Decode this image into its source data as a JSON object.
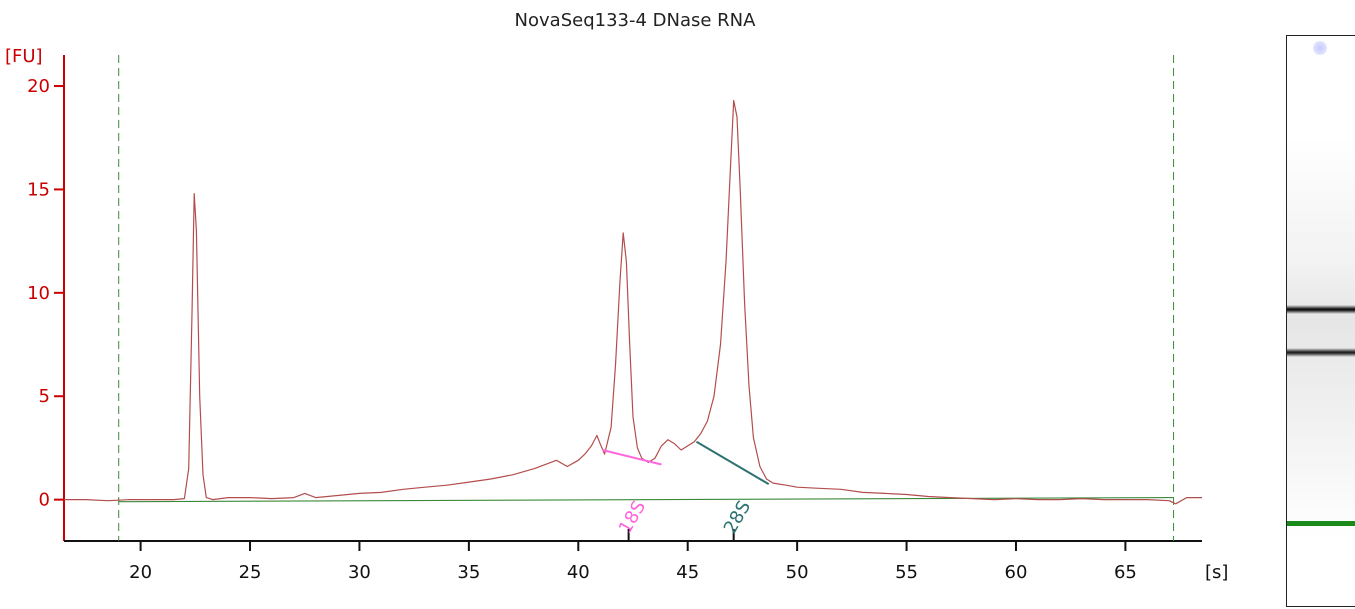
{
  "chart_data": {
    "type": "line",
    "title": "NovaSeq133-4 DNase RNA",
    "ylabel": "[FU]",
    "xlabel": "[s]",
    "xlim": [
      16.5,
      68.5
    ],
    "ylim": [
      -2,
      21.5
    ],
    "x_ticks": [
      20,
      25,
      30,
      35,
      40,
      45,
      50,
      55,
      60,
      65
    ],
    "y_ticks": [
      0,
      5,
      10,
      15,
      20
    ],
    "grid": false,
    "markers": [
      19.0,
      67.2
    ],
    "series": [
      {
        "color": "#b34d4d",
        "x": [
          16.5,
          17.5,
          18.5,
          19.5,
          20.5,
          21.5,
          22.0,
          22.2,
          22.35,
          22.45,
          22.55,
          22.7,
          22.85,
          23.0,
          23.3,
          24,
          25,
          26,
          27,
          27.5,
          28,
          29,
          30,
          31,
          32,
          33,
          34,
          35,
          36,
          37,
          38,
          39,
          39.5,
          40,
          40.3,
          40.6,
          40.85,
          41.0,
          41.2,
          41.5,
          41.7,
          41.9,
          42.05,
          42.2,
          42.35,
          42.5,
          42.7,
          42.9,
          43.2,
          43.5,
          43.8,
          44.1,
          44.4,
          44.7,
          45.0,
          45.3,
          45.6,
          45.9,
          46.2,
          46.5,
          46.75,
          46.95,
          47.1,
          47.25,
          47.4,
          47.6,
          47.8,
          48.0,
          48.3,
          48.6,
          48.9,
          49.5,
          50,
          51,
          52,
          53,
          54,
          55,
          56,
          57,
          58,
          59,
          60,
          61,
          62,
          63,
          64,
          65,
          66,
          67,
          67.3,
          67.8,
          68.5
        ],
        "y": [
          0.0,
          0.0,
          -0.05,
          0.0,
          0.0,
          0.0,
          0.05,
          1.5,
          9.0,
          14.8,
          13.0,
          5.0,
          1.2,
          0.1,
          0.0,
          0.1,
          0.1,
          0.05,
          0.1,
          0.3,
          0.1,
          0.2,
          0.3,
          0.35,
          0.5,
          0.6,
          0.7,
          0.85,
          1.0,
          1.2,
          1.5,
          1.9,
          1.6,
          1.9,
          2.2,
          2.6,
          3.1,
          2.7,
          2.2,
          3.5,
          6.5,
          10.5,
          12.9,
          11.5,
          7.5,
          4.0,
          2.5,
          2.0,
          1.8,
          2.0,
          2.6,
          2.9,
          2.7,
          2.4,
          2.6,
          2.8,
          3.2,
          3.8,
          5.0,
          7.5,
          11.5,
          16.0,
          19.3,
          18.5,
          15.0,
          9.5,
          5.5,
          3.0,
          1.6,
          1.0,
          0.8,
          0.7,
          0.6,
          0.55,
          0.5,
          0.35,
          0.3,
          0.25,
          0.15,
          0.1,
          0.05,
          0.0,
          0.05,
          0.0,
          0.0,
          0.05,
          0.0,
          0.0,
          0.0,
          -0.05,
          -0.2,
          0.1,
          0.1
        ]
      }
    ],
    "baseline": {
      "color": "#3a8a3a",
      "x": [
        19.0,
        67.2
      ],
      "y": [
        -0.1,
        0.1
      ]
    },
    "annotations": [
      {
        "label": "18S",
        "x": 42.3,
        "color": "#ff66dd",
        "line": {
          "x": [
            41.1,
            43.8
          ],
          "y": [
            2.4,
            1.7
          ]
        }
      },
      {
        "label": "28S",
        "x": 47.1,
        "color": "#2e7272",
        "line": {
          "x": [
            45.4,
            48.7
          ],
          "y": [
            2.8,
            0.75
          ]
        }
      }
    ],
    "colors": {
      "axis_y": "#cc0000",
      "axis_x": "#111111",
      "marker": "#3a8a3a"
    }
  },
  "gel": {
    "bands": [
      {
        "name": "upper-band",
        "position": 0.48,
        "color": "#111111"
      },
      {
        "name": "lower-band",
        "position": 0.555,
        "color": "#222222"
      },
      {
        "name": "marker-band",
        "position": 0.855,
        "color": "#1a8a1a"
      }
    ]
  }
}
